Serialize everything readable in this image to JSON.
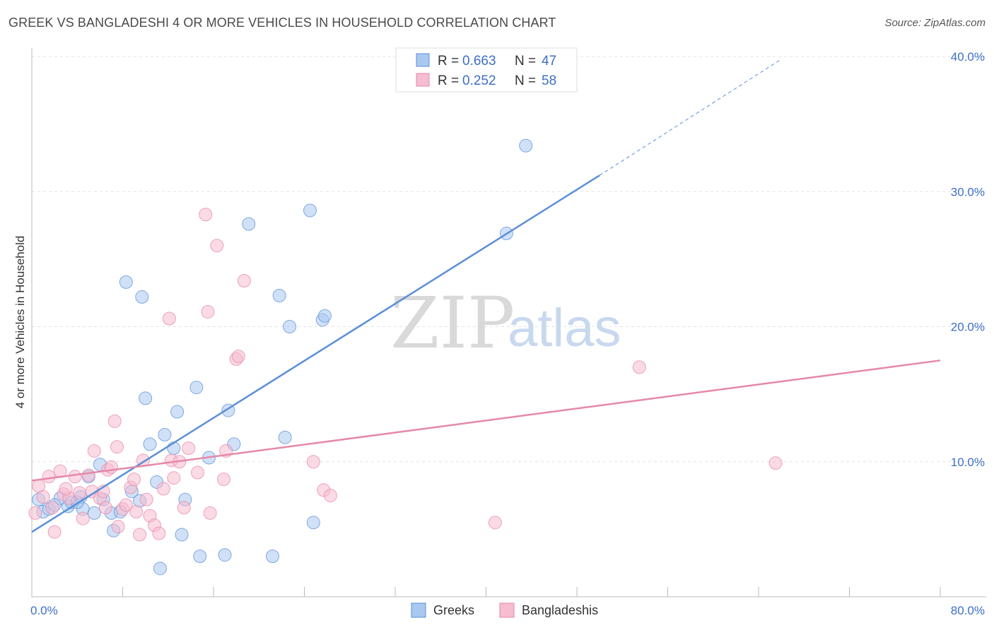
{
  "title": "GREEK VS BANGLADESHI 4 OR MORE VEHICLES IN HOUSEHOLD CORRELATION CHART",
  "source": "Source: ZipAtlas.com",
  "watermark": {
    "zip": "ZIP",
    "atlas": "atlas"
  },
  "legend": {
    "r_label": "R =",
    "n_label": "N =",
    "rows": [
      {
        "r": "0.663",
        "n": "47",
        "color": "#a9c8f0",
        "stroke": "#5b8fd8"
      },
      {
        "r": "0.252",
        "n": "58",
        "color": "#f6bcd0",
        "stroke": "#e688a8"
      }
    ]
  },
  "bottom_legend": [
    {
      "label": "Greeks",
      "color": "#a9c8f0",
      "stroke": "#5b8fd8"
    },
    {
      "label": "Bangladeshis",
      "color": "#f6bcd0",
      "stroke": "#e688a8"
    }
  ],
  "chart_data": {
    "type": "scatter",
    "title": "GREEK VS BANGLADESHI 4 OR MORE VEHICLES IN HOUSEHOLD CORRELATION CHART",
    "xlabel": "",
    "ylabel": "4 or more Vehicles in Household",
    "xlim": [
      0,
      80
    ],
    "ylim": [
      0,
      40
    ],
    "x_tick_labels": [
      "0.0%",
      "80.0%"
    ],
    "y_ticks": [
      10,
      20,
      30,
      40
    ],
    "y_tick_labels": [
      "10.0%",
      "20.0%",
      "30.0%",
      "40.0%"
    ],
    "grid": true,
    "legend_position": "top-center",
    "series": [
      {
        "name": "Greeks",
        "color": "#5b8fd8",
        "fill": "#a9c8f0",
        "trend": {
          "x0": 0,
          "y0": 4.8,
          "x1": 50,
          "y1": 31.2,
          "dashed_to": {
            "x": 66,
            "y": 39.8
          }
        },
        "points": [
          [
            0.6,
            7.2
          ],
          [
            1.0,
            6.3
          ],
          [
            1.5,
            6.5
          ],
          [
            2.5,
            7.3
          ],
          [
            3.2,
            6.7
          ],
          [
            3.5,
            7.0
          ],
          [
            4.3,
            7.4
          ],
          [
            4.5,
            6.5
          ],
          [
            5.0,
            8.9
          ],
          [
            5.5,
            6.2
          ],
          [
            6.0,
            9.8
          ],
          [
            6.3,
            7.2
          ],
          [
            7.0,
            6.2
          ],
          [
            7.2,
            4.9
          ],
          [
            7.8,
            6.3
          ],
          [
            8.3,
            23.3
          ],
          [
            8.8,
            7.8
          ],
          [
            9.7,
            22.2
          ],
          [
            10.0,
            14.7
          ],
          [
            10.4,
            11.3
          ],
          [
            11.0,
            8.5
          ],
          [
            11.3,
            2.1
          ],
          [
            11.7,
            12.0
          ],
          [
            12.5,
            11.0
          ],
          [
            12.8,
            13.7
          ],
          [
            13.2,
            4.6
          ],
          [
            13.5,
            7.2
          ],
          [
            14.5,
            15.5
          ],
          [
            14.8,
            3.0
          ],
          [
            15.6,
            10.3
          ],
          [
            17.0,
            3.1
          ],
          [
            17.3,
            13.8
          ],
          [
            17.8,
            11.3
          ],
          [
            19.1,
            27.6
          ],
          [
            21.2,
            3.0
          ],
          [
            21.8,
            22.3
          ],
          [
            22.3,
            11.8
          ],
          [
            22.7,
            20.0
          ],
          [
            24.5,
            28.6
          ],
          [
            24.8,
            5.5
          ],
          [
            25.6,
            20.5
          ],
          [
            25.8,
            20.8
          ],
          [
            41.8,
            26.9
          ],
          [
            43.5,
            33.4
          ],
          [
            9.5,
            7.1
          ],
          [
            4.0,
            7.0
          ],
          [
            2.0,
            6.8
          ]
        ]
      },
      {
        "name": "Bangladeshis",
        "color": "#e688a8",
        "fill": "#f6bcd0",
        "trend": {
          "x0": 0,
          "y0": 8.6,
          "x1": 80,
          "y1": 17.5
        },
        "points": [
          [
            0.3,
            6.2
          ],
          [
            0.6,
            8.2
          ],
          [
            1.0,
            7.4
          ],
          [
            1.5,
            8.9
          ],
          [
            2.0,
            4.8
          ],
          [
            2.5,
            9.3
          ],
          [
            2.8,
            7.6
          ],
          [
            3.3,
            7.3
          ],
          [
            3.8,
            8.9
          ],
          [
            4.2,
            7.7
          ],
          [
            4.5,
            5.8
          ],
          [
            5.0,
            9.0
          ],
          [
            5.3,
            7.8
          ],
          [
            5.5,
            10.8
          ],
          [
            6.0,
            7.3
          ],
          [
            6.3,
            7.8
          ],
          [
            6.7,
            9.4
          ],
          [
            7.0,
            9.6
          ],
          [
            7.3,
            13.0
          ],
          [
            7.6,
            5.2
          ],
          [
            8.0,
            6.5
          ],
          [
            8.3,
            6.8
          ],
          [
            8.7,
            8.1
          ],
          [
            9.0,
            8.7
          ],
          [
            9.5,
            4.6
          ],
          [
            9.8,
            10.1
          ],
          [
            10.1,
            7.2
          ],
          [
            10.4,
            6.0
          ],
          [
            10.8,
            5.3
          ],
          [
            11.2,
            4.7
          ],
          [
            11.6,
            8.0
          ],
          [
            12.3,
            10.1
          ],
          [
            12.5,
            8.8
          ],
          [
            13.0,
            10.0
          ],
          [
            13.4,
            6.6
          ],
          [
            13.8,
            11.0
          ],
          [
            14.6,
            9.2
          ],
          [
            15.3,
            28.3
          ],
          [
            15.5,
            21.1
          ],
          [
            15.7,
            6.2
          ],
          [
            16.3,
            26.0
          ],
          [
            16.9,
            8.7
          ],
          [
            17.1,
            10.8
          ],
          [
            18.0,
            17.6
          ],
          [
            18.2,
            17.8
          ],
          [
            18.7,
            23.4
          ],
          [
            12.1,
            20.6
          ],
          [
            24.8,
            10.0
          ],
          [
            25.7,
            7.9
          ],
          [
            26.3,
            7.5
          ],
          [
            40.8,
            5.5
          ],
          [
            53.5,
            17.0
          ],
          [
            65.5,
            9.9
          ],
          [
            1.8,
            6.6
          ],
          [
            6.5,
            6.6
          ],
          [
            9.2,
            6.3
          ],
          [
            7.5,
            11.1
          ],
          [
            3.0,
            8.0
          ]
        ]
      }
    ]
  }
}
